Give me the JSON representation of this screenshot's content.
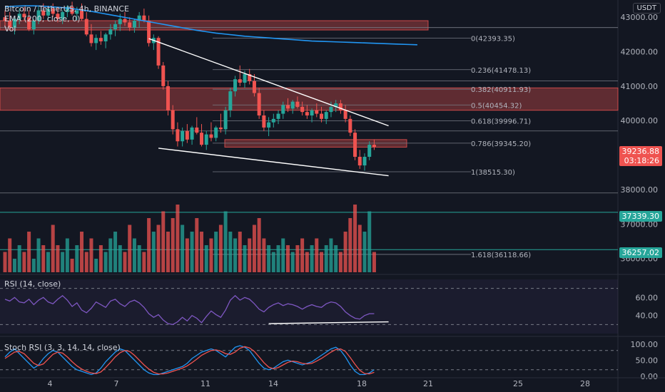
{
  "header": {
    "symbol_line": "Bitcoin / TetherUS, 4h, BINANCE",
    "ema_line": "EMA (200, close, 0)",
    "vol_line": "Vol",
    "currency": "USDT",
    "rsi_line": "RSI (14, close)",
    "stoch_line": "Stoch RSI (3, 3, 14, 14, close)"
  },
  "price_badge": {
    "price": "39236.88",
    "countdown": "03:18:26"
  },
  "levels": [
    {
      "label": "37339.30",
      "color": "#26a69a"
    },
    {
      "label": "36257.02",
      "color": "#26a69a"
    }
  ],
  "colors": {
    "bg": "#131722",
    "up": "#26a69a",
    "down": "#ef5350",
    "ema": "#2196f3",
    "rsi": "#7e57c2",
    "stoch_k": "#2196f3",
    "stoch_d": "#ef5350",
    "zone": "#ef5350"
  },
  "chart_data": [
    {
      "type": "candlestick",
      "title": "Bitcoin / TetherUS, 4h, BINANCE",
      "ylim": [
        35600,
        43500
      ],
      "y_ticks": [
        "43000.00",
        "42000.00",
        "41000.00",
        "40000.00",
        "39000.00",
        "38000.00",
        "37000.00",
        "36000.00"
      ],
      "x_ticks": [
        "4",
        "7",
        "11",
        "14",
        "18",
        "21",
        "25",
        "28"
      ],
      "ohlc": [
        [
          43000,
          43200,
          42700,
          42900
        ],
        [
          42900,
          43150,
          42650,
          42700
        ],
        [
          42700,
          43000,
          42500,
          42950
        ],
        [
          42950,
          43250,
          42800,
          43100
        ],
        [
          43100,
          43300,
          42900,
          43000
        ],
        [
          43000,
          43200,
          42600,
          42650
        ],
        [
          42650,
          42950,
          42500,
          42900
        ],
        [
          42900,
          43300,
          42800,
          43200
        ],
        [
          43200,
          43400,
          42950,
          43050
        ],
        [
          43050,
          43300,
          42900,
          43250
        ],
        [
          43250,
          43400,
          43000,
          43100
        ],
        [
          43100,
          43300,
          42850,
          42950
        ],
        [
          42950,
          43200,
          42800,
          43150
        ],
        [
          43150,
          43350,
          43000,
          43300
        ],
        [
          43300,
          43450,
          43050,
          43100
        ],
        [
          43100,
          43300,
          42900,
          43200
        ],
        [
          43200,
          43400,
          42900,
          42950
        ],
        [
          42950,
          43150,
          42450,
          42500
        ],
        [
          42500,
          42800,
          42150,
          42250
        ],
        [
          42250,
          42500,
          42050,
          42400
        ],
        [
          42400,
          42600,
          42200,
          42300
        ],
        [
          42300,
          42550,
          42100,
          42500
        ],
        [
          42500,
          42800,
          42350,
          42650
        ],
        [
          42650,
          42900,
          42450,
          42800
        ],
        [
          42800,
          43100,
          42600,
          42950
        ],
        [
          42950,
          43150,
          42750,
          42850
        ],
        [
          42850,
          43000,
          42600,
          42700
        ],
        [
          42700,
          42950,
          42550,
          42900
        ],
        [
          42900,
          43150,
          42700,
          43050
        ],
        [
          43050,
          43250,
          42850,
          42900
        ],
        [
          42900,
          43050,
          42150,
          42250
        ],
        [
          42250,
          42500,
          42050,
          42400
        ],
        [
          42400,
          42450,
          41500,
          41600
        ],
        [
          41600,
          41700,
          40900,
          41000
        ],
        [
          41000,
          41150,
          40150,
          40300
        ],
        [
          40300,
          40450,
          39600,
          39750
        ],
        [
          39750,
          39950,
          39250,
          39400
        ],
        [
          39400,
          39800,
          39250,
          39700
        ],
        [
          39700,
          39900,
          39350,
          39450
        ],
        [
          39450,
          39850,
          39300,
          39800
        ],
        [
          39800,
          40100,
          39600,
          39650
        ],
        [
          39650,
          39900,
          39250,
          39300
        ],
        [
          39300,
          39700,
          39150,
          39600
        ],
        [
          39600,
          39950,
          39400,
          39500
        ],
        [
          39500,
          39850,
          39400,
          39800
        ],
        [
          39800,
          40200,
          39650,
          39750
        ],
        [
          39750,
          40400,
          39600,
          40300
        ],
        [
          40300,
          40950,
          40100,
          40850
        ],
        [
          40850,
          41300,
          40700,
          41200
        ],
        [
          41200,
          41600,
          41000,
          41100
        ],
        [
          41100,
          41450,
          40950,
          41350
        ],
        [
          41350,
          41500,
          41050,
          41150
        ],
        [
          41150,
          41350,
          40700,
          40800
        ],
        [
          40800,
          40950,
          40050,
          40150
        ],
        [
          40150,
          40300,
          39700,
          39800
        ],
        [
          39800,
          40100,
          39550,
          39950
        ],
        [
          39950,
          40200,
          39800,
          40050
        ],
        [
          40050,
          40300,
          39900,
          40200
        ],
        [
          40200,
          40550,
          40050,
          40450
        ],
        [
          40450,
          40650,
          40250,
          40350
        ],
        [
          40350,
          40600,
          40200,
          40550
        ],
        [
          40550,
          40700,
          40350,
          40400
        ],
        [
          40400,
          40550,
          40150,
          40250
        ],
        [
          40250,
          40450,
          40050,
          40150
        ],
        [
          40150,
          40350,
          39950,
          40300
        ],
        [
          40300,
          40500,
          40100,
          40200
        ],
        [
          40200,
          40400,
          39950,
          40050
        ],
        [
          40050,
          40300,
          39900,
          40250
        ],
        [
          40250,
          40550,
          40100,
          40400
        ],
        [
          40400,
          40600,
          40250,
          40500
        ],
        [
          40500,
          40600,
          40200,
          40300
        ],
        [
          40300,
          40450,
          39950,
          40050
        ],
        [
          40050,
          40150,
          39550,
          39650
        ],
        [
          39650,
          39750,
          38850,
          38950
        ],
        [
          38950,
          39150,
          38600,
          38700
        ],
        [
          38700,
          39050,
          38550,
          38950
        ],
        [
          38950,
          39400,
          38850,
          39300
        ],
        [
          39300,
          39450,
          39150,
          39237
        ]
      ],
      "ema": [
        43300,
        43320,
        43330,
        43330,
        43320,
        43300,
        43280,
        43250,
        43210,
        43170,
        43120,
        43070,
        43020,
        42970,
        42920,
        42870,
        42820,
        42770,
        42720,
        42670,
        42620,
        42580,
        42540,
        42510,
        42480,
        42450,
        42430,
        42410,
        42390,
        42370,
        42350,
        42330,
        42310,
        42300,
        42290,
        42280,
        42270,
        42260,
        42250,
        42240,
        42230,
        42220,
        42210,
        42200
      ],
      "zones": [
        {
          "top": 42900,
          "bottom": 42630
        },
        {
          "top": 40950,
          "bottom": 40300
        },
        {
          "top": 39450,
          "bottom": 39230
        }
      ],
      "fib_levels": [
        {
          "label": "0(42393.35)",
          "value": 42393.35
        },
        {
          "label": "0.236(41478.13)",
          "value": 41478.13
        },
        {
          "label": "0.382(40911.93)",
          "value": 40911.93
        },
        {
          "label": "0.5(40454.32)",
          "value": 40454.32
        },
        {
          "label": "0.618(39996.71)",
          "value": 39996.71
        },
        {
          "label": "0.786(39345.20)",
          "value": 39345.2
        },
        {
          "label": "1(38515.30)",
          "value": 38515.3
        },
        {
          "label": "1.618(36118.66)",
          "value": 36118.66
        }
      ],
      "h_lines": [
        42700,
        41150,
        39700,
        37900,
        37339.3,
        36257.02
      ],
      "wedge_upper": [
        [
          30,
          42380
        ],
        [
          80,
          39850
        ]
      ],
      "wedge_lower": [
        [
          32,
          39200
        ],
        [
          80,
          38400
        ]
      ],
      "volume": [
        3,
        5,
        2,
        4,
        3,
        6,
        2,
        5,
        4,
        3,
        7,
        4,
        3,
        5,
        2,
        4,
        6,
        3,
        5,
        2,
        4,
        3,
        5,
        6,
        4,
        3,
        7,
        5,
        4,
        3,
        8,
        6,
        7,
        9,
        6,
        8,
        10,
        7,
        5,
        6,
        8,
        6,
        4,
        5,
        6,
        7,
        9,
        6,
        5,
        6,
        4,
        5,
        7,
        8,
        5,
        4,
        3,
        4,
        5,
        4,
        3,
        4,
        5,
        3,
        4,
        5,
        3,
        4,
        5,
        4,
        3,
        6,
        8,
        10,
        7,
        6,
        9,
        3
      ]
    },
    {
      "type": "line",
      "title": "RSI (14, close)",
      "ylim": [
        20,
        80
      ],
      "y_ticks": [
        "60.00",
        "40.00"
      ],
      "bands": [
        70,
        30
      ],
      "values": [
        58,
        56,
        60,
        55,
        54,
        58,
        52,
        57,
        60,
        55,
        53,
        58,
        62,
        57,
        50,
        54,
        46,
        43,
        48,
        55,
        52,
        49,
        56,
        58,
        53,
        50,
        55,
        57,
        54,
        49,
        42,
        38,
        41,
        35,
        31,
        30,
        33,
        38,
        34,
        40,
        37,
        32,
        39,
        45,
        41,
        38,
        46,
        57,
        62,
        57,
        60,
        58,
        53,
        47,
        44,
        49,
        52,
        54,
        51,
        53,
        52,
        50,
        47,
        50,
        52,
        50,
        49,
        53,
        55,
        54,
        50,
        44,
        40,
        37,
        36,
        40,
        42,
        42
      ],
      "divergence_line": [
        [
          55,
          31
        ],
        [
          80,
          33
        ]
      ]
    },
    {
      "type": "line",
      "title": "Stoch RSI (3, 3, 14, 14, close)",
      "ylim": [
        -5,
        115
      ],
      "y_ticks": [
        "100.00",
        "50.00",
        "0.00"
      ],
      "bands": [
        80,
        20
      ],
      "series": [
        {
          "values": [
            60,
            75,
            85,
            70,
            55,
            40,
            25,
            35,
            55,
            70,
            80,
            75,
            60,
            45,
            30,
            20,
            15,
            10,
            5,
            10,
            25,
            45,
            60,
            75,
            85,
            80,
            65,
            50,
            35,
            20,
            10,
            5,
            5,
            10,
            15,
            20,
            25,
            30,
            40,
            55,
            65,
            75,
            80,
            85,
            80,
            70,
            60,
            75,
            90,
            95,
            90,
            80,
            60,
            40,
            25,
            20,
            25,
            35,
            45,
            50,
            45,
            40,
            35,
            40,
            45,
            55,
            65,
            75,
            85,
            90,
            80,
            60,
            35,
            15,
            5,
            5,
            10,
            20
          ]
        },
        {
          "values": [
            55,
            65,
            75,
            77,
            70,
            55,
            40,
            33,
            38,
            53,
            68,
            75,
            72,
            60,
            45,
            32,
            22,
            15,
            10,
            8,
            13,
            27,
            43,
            60,
            73,
            80,
            77,
            65,
            50,
            35,
            22,
            12,
            7,
            7,
            10,
            15,
            20,
            25,
            32,
            42,
            53,
            65,
            73,
            80,
            82,
            78,
            70,
            68,
            75,
            87,
            92,
            88,
            77,
            60,
            42,
            28,
            23,
            27,
            35,
            43,
            47,
            45,
            40,
            38,
            40,
            47,
            55,
            65,
            75,
            83,
            85,
            77,
            58,
            37,
            18,
            8,
            7,
            12
          ]
        }
      ]
    }
  ]
}
